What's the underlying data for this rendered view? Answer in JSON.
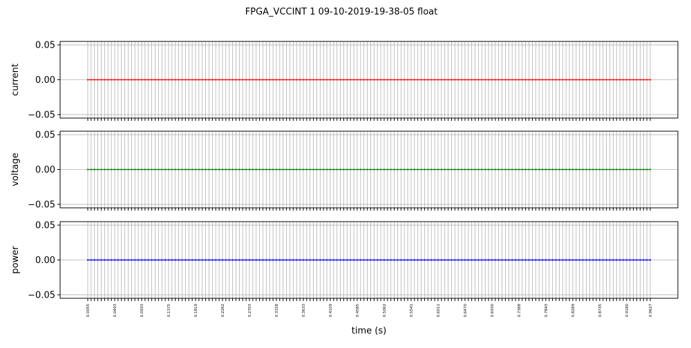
{
  "chart_data": {
    "type": "line",
    "title": "FPGA_VCCINT   1   09-10-2019-19-38-05   float",
    "xlabel": "time (s)",
    "x_tick_labels": [
      "0.0055",
      "0.0493",
      "0.0933",
      "0.1375",
      "0.1819",
      "0.2262",
      "0.2703",
      "0.3158",
      "0.3633",
      "0.4109",
      "0.4585",
      "0.5062",
      "0.5541",
      "0.6011",
      "0.6470",
      "0.6930",
      "0.7388",
      "0.7843",
      "0.8289",
      "0.8735",
      "0.9180",
      "0.9627"
    ],
    "x_range": [
      0.0055,
      0.9975
    ],
    "sample_count": 168,
    "grid": true,
    "subplots": [
      {
        "ylabel": "current",
        "color": "#ff0000",
        "ylim": [
          -0.055,
          0.055
        ],
        "y_ticks": [
          0.05,
          0.0,
          -0.05
        ],
        "y_tick_labels": [
          "0.05",
          "0.00",
          "−0.05"
        ],
        "series": [
          {
            "constant_value": 0.0
          }
        ]
      },
      {
        "ylabel": "voltage",
        "color": "#008000",
        "ylim": [
          -0.055,
          0.055
        ],
        "y_ticks": [
          0.05,
          0.0,
          -0.05
        ],
        "y_tick_labels": [
          "0.05",
          "0.00",
          "−0.05"
        ],
        "series": [
          {
            "constant_value": 0.0
          }
        ]
      },
      {
        "ylabel": "power",
        "color": "#0000ff",
        "ylim": [
          -0.055,
          0.055
        ],
        "y_ticks": [
          0.05,
          0.0,
          -0.05
        ],
        "y_tick_labels": [
          "0.05",
          "0.00",
          "−0.05"
        ],
        "series": [
          {
            "constant_value": 0.0
          }
        ]
      }
    ]
  }
}
